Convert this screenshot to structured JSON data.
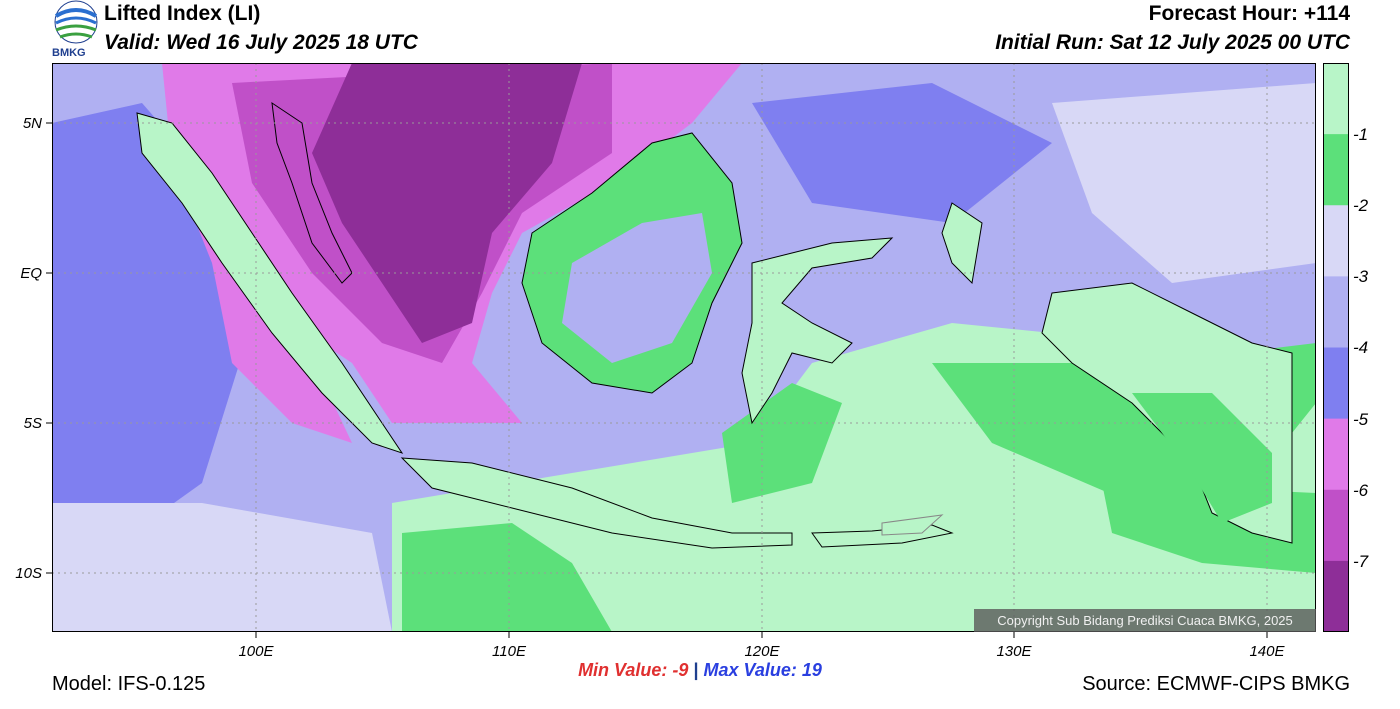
{
  "header": {
    "title": "Lifted Index (LI)",
    "valid": "Valid: Wed 16 July 2025 18 UTC",
    "forecast_hour": "Forecast Hour: +114",
    "initial_run": "Initial Run: Sat 12 July 2025 00 UTC"
  },
  "logo": {
    "text": "BMKG"
  },
  "map": {
    "lat_labels": [
      "5N",
      "EQ",
      "5S",
      "10S"
    ],
    "lon_labels": [
      "100E",
      "110E",
      "120E",
      "130E",
      "140E"
    ],
    "copyright": "Copyright Sub Bidang Prediksi Cuaca BMKG, 2025",
    "colors": {
      "ocean_pale": "#b8f5c8",
      "green": "#5ce07a",
      "lavender_light": "#d8d8f6",
      "lavender": "#b0b0f2",
      "blue": "#7f7ff0",
      "pink": "#e07ae8",
      "magenta": "#c050c8",
      "purple": "#8e2e98",
      "coast": "#000000"
    }
  },
  "colorbar": {
    "labels": [
      "-1",
      "-2",
      "-3",
      "-4",
      "-5",
      "-6",
      "-7"
    ],
    "colors": [
      "#b8f5c8",
      "#5ce07a",
      "#d8d8f6",
      "#b0b0f2",
      "#7f7ff0",
      "#e07ae8",
      "#c050c8",
      "#8e2e98"
    ]
  },
  "stats": {
    "min_label": "Min Value:",
    "min_value": "-9",
    "separator": "|",
    "max_label": "Max Value:",
    "max_value": "19"
  },
  "footer": {
    "model": "Model: IFS-0.125",
    "source": "Source: ECMWF-CIPS BMKG"
  }
}
